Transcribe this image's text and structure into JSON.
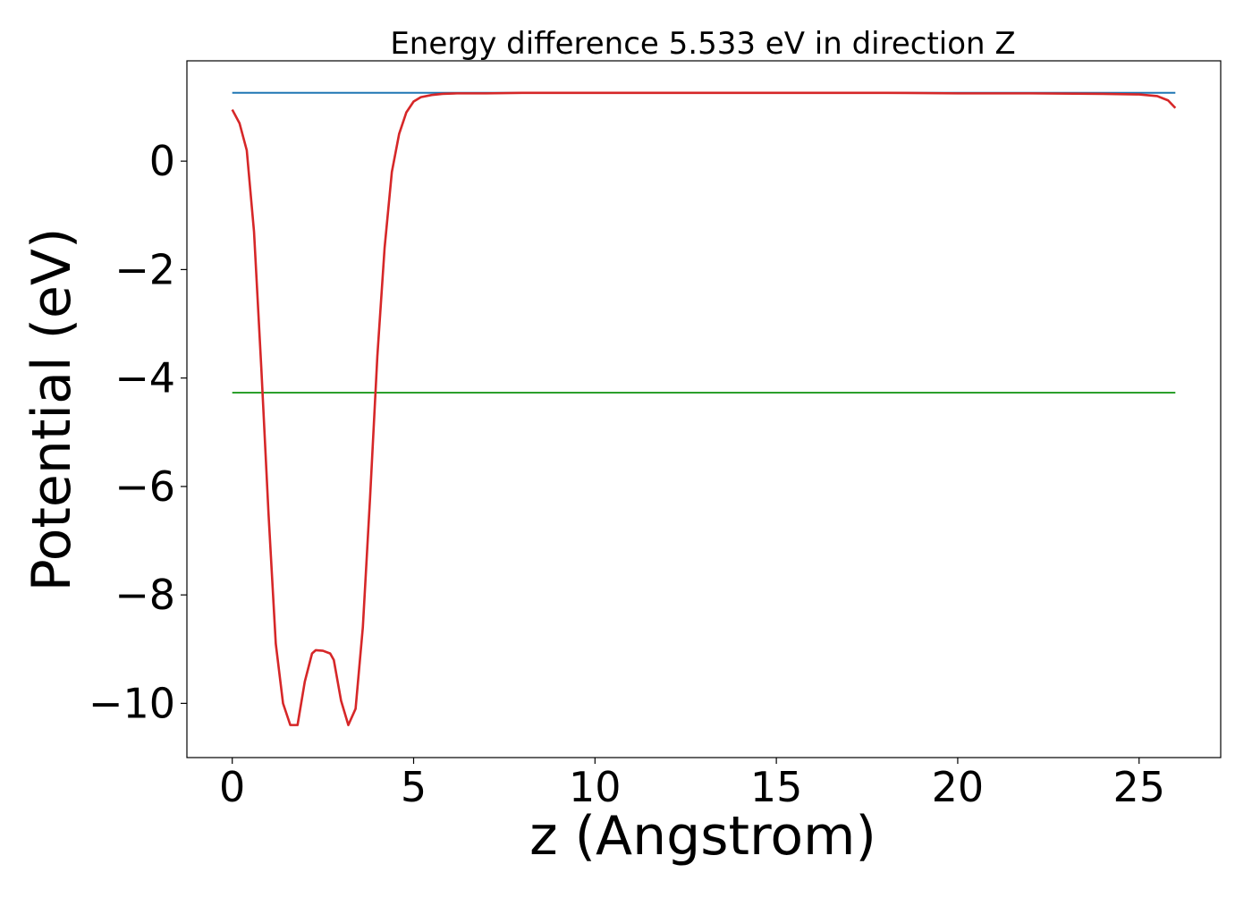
{
  "chart_data": {
    "type": "line",
    "title": "Energy difference 5.533 eV in direction Z",
    "xlabel": "z (Angstrom)",
    "ylabel": "Potential (eV)",
    "xlim": [
      -1.25,
      27.25
    ],
    "ylim": [
      -11.0,
      1.85
    ],
    "xticks": [
      0,
      5,
      10,
      15,
      20,
      25
    ],
    "xtick_labels": [
      "0",
      "5",
      "10",
      "15",
      "20",
      "25"
    ],
    "yticks": [
      0,
      -2,
      -4,
      -6,
      -8,
      -10
    ],
    "ytick_labels": [
      "0",
      "−2",
      "−4",
      "−6",
      "−8",
      "−10"
    ],
    "grid": false,
    "legend": "none",
    "series": [
      {
        "color": "#d62728",
        "kind": "potential",
        "x": [
          0.0,
          0.2,
          0.4,
          0.6,
          0.8,
          1.0,
          1.2,
          1.4,
          1.6,
          1.8,
          2.0,
          2.2,
          2.3,
          2.5,
          2.7,
          2.8,
          3.0,
          3.2,
          3.4,
          3.6,
          3.8,
          4.0,
          4.2,
          4.4,
          4.6,
          4.8,
          5.0,
          5.2,
          5.5,
          5.8,
          6.2,
          7.0,
          8.0,
          10.0,
          12.0,
          15.0,
          18.0,
          20.0,
          22.0,
          24.0,
          25.0,
          25.5,
          25.8,
          26.0
        ],
        "y": [
          0.95,
          0.7,
          0.2,
          -1.3,
          -3.8,
          -6.5,
          -8.9,
          -10.0,
          -10.4,
          -10.4,
          -9.6,
          -9.08,
          -9.02,
          -9.03,
          -9.08,
          -9.2,
          -9.95,
          -10.4,
          -10.1,
          -8.6,
          -6.2,
          -3.6,
          -1.6,
          -0.2,
          0.5,
          0.9,
          1.1,
          1.18,
          1.22,
          1.24,
          1.25,
          1.25,
          1.26,
          1.26,
          1.26,
          1.26,
          1.26,
          1.25,
          1.25,
          1.24,
          1.23,
          1.2,
          1.12,
          0.98
        ]
      },
      {
        "color": "#1f77b4",
        "kind": "horizontal-line",
        "x": [
          0.0,
          26.0
        ],
        "y": [
          1.26,
          1.26
        ]
      },
      {
        "color": "#2ca02c",
        "kind": "horizontal-line",
        "x": [
          0.0,
          26.0
        ],
        "y": [
          -4.27,
          -4.27
        ]
      }
    ]
  }
}
